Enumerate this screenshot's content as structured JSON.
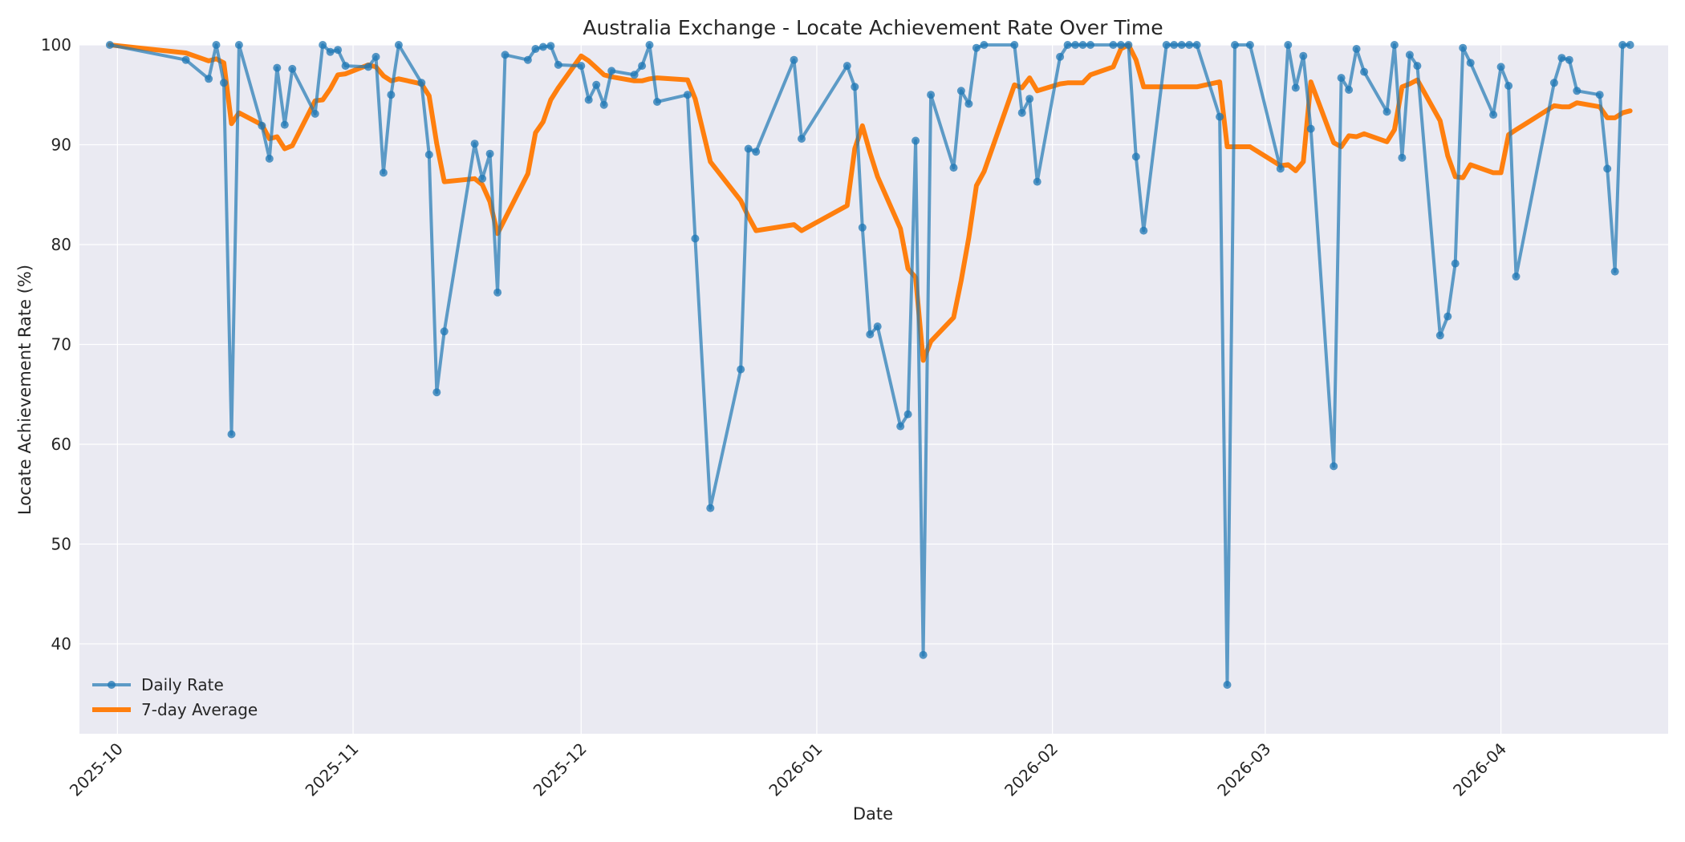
{
  "chart_data": {
    "type": "line",
    "title": "Australia Exchange - Locate Achievement Rate Over Time",
    "xlabel": "Date",
    "ylabel": "Locate Achievement Rate (%)",
    "xlim": [
      "2025-09-26",
      "2026-04-23"
    ],
    "ylim": [
      31,
      100
    ],
    "x_ticks": [
      "2025-10",
      "2025-11",
      "2025-12",
      "2026-01",
      "2026-02",
      "2026-03",
      "2026-04"
    ],
    "y_ticks": [
      40,
      50,
      60,
      70,
      80,
      90,
      100
    ],
    "grid": true,
    "legend": "bottom-left",
    "series": [
      {
        "name": "Daily Rate",
        "color": "#1f77b4",
        "marker": "circle",
        "points": [
          [
            "2025-09-30",
            100
          ],
          [
            "2025-10-10",
            98.5
          ],
          [
            "2025-10-13",
            96.6
          ],
          [
            "2025-10-14",
            100
          ],
          [
            "2025-10-15",
            96.2
          ],
          [
            "2025-10-16",
            61
          ],
          [
            "2025-10-17",
            100
          ],
          [
            "2025-10-20",
            91.9
          ],
          [
            "2025-10-21",
            88.6
          ],
          [
            "2025-10-22",
            97.7
          ],
          [
            "2025-10-23",
            92
          ],
          [
            "2025-10-24",
            97.6
          ],
          [
            "2025-10-27",
            93.1
          ],
          [
            "2025-10-28",
            100
          ],
          [
            "2025-10-29",
            99.3
          ],
          [
            "2025-10-30",
            99.5
          ],
          [
            "2025-10-31",
            97.9
          ],
          [
            "2025-11-03",
            97.8
          ],
          [
            "2025-11-04",
            98.8
          ],
          [
            "2025-11-05",
            87.2
          ],
          [
            "2025-11-06",
            95
          ],
          [
            "2025-11-07",
            100
          ],
          [
            "2025-11-10",
            96.2
          ],
          [
            "2025-11-11",
            89
          ],
          [
            "2025-11-12",
            65.2
          ],
          [
            "2025-11-13",
            71.3
          ],
          [
            "2025-11-17",
            90.1
          ],
          [
            "2025-11-18",
            86.6
          ],
          [
            "2025-11-19",
            89.1
          ],
          [
            "2025-11-20",
            75.2
          ],
          [
            "2025-11-21",
            99
          ],
          [
            "2025-11-24",
            98.5
          ],
          [
            "2025-11-25",
            99.6
          ],
          [
            "2025-11-26",
            99.8
          ],
          [
            "2025-11-27",
            99.9
          ],
          [
            "2025-11-28",
            98
          ],
          [
            "2025-12-01",
            97.9
          ],
          [
            "2025-12-02",
            94.5
          ],
          [
            "2025-12-03",
            96
          ],
          [
            "2025-12-04",
            94
          ],
          [
            "2025-12-05",
            97.4
          ],
          [
            "2025-12-08",
            97
          ],
          [
            "2025-12-09",
            97.9
          ],
          [
            "2025-12-10",
            100
          ],
          [
            "2025-12-11",
            94.3
          ],
          [
            "2025-12-15",
            95
          ],
          [
            "2025-12-16",
            80.6
          ],
          [
            "2025-12-18",
            53.6
          ],
          [
            "2025-12-22",
            67.5
          ],
          [
            "2025-12-23",
            89.6
          ],
          [
            "2025-12-24",
            89.3
          ],
          [
            "2025-12-29",
            98.5
          ],
          [
            "2025-12-30",
            90.6
          ],
          [
            "2026-01-05",
            97.9
          ],
          [
            "2026-01-06",
            95.8
          ],
          [
            "2026-01-07",
            81.7
          ],
          [
            "2026-01-08",
            71
          ],
          [
            "2026-01-09",
            71.8
          ],
          [
            "2026-01-12",
            61.8
          ],
          [
            "2026-01-13",
            63
          ],
          [
            "2026-01-14",
            90.4
          ],
          [
            "2026-01-15",
            38.9
          ],
          [
            "2026-01-16",
            95
          ],
          [
            "2026-01-19",
            87.7
          ],
          [
            "2026-01-20",
            95.4
          ],
          [
            "2026-01-21",
            94.1
          ],
          [
            "2026-01-22",
            99.7
          ],
          [
            "2026-01-23",
            100
          ],
          [
            "2026-01-27",
            100
          ],
          [
            "2026-01-28",
            93.2
          ],
          [
            "2026-01-29",
            94.6
          ],
          [
            "2026-01-30",
            86.3
          ],
          [
            "2026-02-02",
            98.8
          ],
          [
            "2026-02-03",
            100
          ],
          [
            "2026-02-04",
            100
          ],
          [
            "2026-02-05",
            100
          ],
          [
            "2026-02-06",
            100
          ],
          [
            "2026-02-09",
            100
          ],
          [
            "2026-02-10",
            100
          ],
          [
            "2026-02-11",
            100
          ],
          [
            "2026-02-12",
            88.8
          ],
          [
            "2026-02-13",
            81.4
          ],
          [
            "2026-02-16",
            100
          ],
          [
            "2026-02-17",
            100
          ],
          [
            "2026-02-18",
            100
          ],
          [
            "2026-02-19",
            100
          ],
          [
            "2026-02-20",
            100
          ],
          [
            "2026-02-23",
            92.8
          ],
          [
            "2026-02-24",
            35.9
          ],
          [
            "2026-02-25",
            100
          ],
          [
            "2026-02-27",
            100
          ],
          [
            "2026-03-03",
            87.6
          ],
          [
            "2026-03-04",
            100
          ],
          [
            "2026-03-05",
            95.7
          ],
          [
            "2026-03-06",
            98.9
          ],
          [
            "2026-03-07",
            91.6
          ],
          [
            "2026-03-10",
            57.8
          ],
          [
            "2026-03-11",
            96.7
          ],
          [
            "2026-03-12",
            95.5
          ],
          [
            "2026-03-13",
            99.6
          ],
          [
            "2026-03-14",
            97.3
          ],
          [
            "2026-03-17",
            93.3
          ],
          [
            "2026-03-18",
            100
          ],
          [
            "2026-03-19",
            88.7
          ],
          [
            "2026-03-20",
            99
          ],
          [
            "2026-03-21",
            97.9
          ],
          [
            "2026-03-24",
            70.9
          ],
          [
            "2026-03-25",
            72.8
          ],
          [
            "2026-03-26",
            78.1
          ],
          [
            "2026-03-27",
            99.7
          ],
          [
            "2026-03-28",
            98.2
          ],
          [
            "2026-03-31",
            93
          ],
          [
            "2026-04-01",
            97.8
          ],
          [
            "2026-04-02",
            95.9
          ],
          [
            "2026-04-03",
            76.8
          ],
          [
            "2026-04-08",
            96.2
          ],
          [
            "2026-04-09",
            98.7
          ],
          [
            "2026-04-10",
            98.5
          ],
          [
            "2026-04-11",
            95.4
          ],
          [
            "2026-04-14",
            95
          ],
          [
            "2026-04-15",
            87.6
          ],
          [
            "2026-04-16",
            77.3
          ],
          [
            "2026-04-17",
            100
          ],
          [
            "2026-04-18",
            100
          ]
        ]
      },
      {
        "name": "7-day Average",
        "color": "#ff7f0e",
        "points": [
          [
            "2025-09-30",
            100
          ],
          [
            "2025-10-10",
            99.2
          ],
          [
            "2025-10-13",
            98.4
          ],
          [
            "2025-10-14",
            98.6
          ],
          [
            "2025-10-15",
            98.2
          ],
          [
            "2025-10-16",
            92.1
          ],
          [
            "2025-10-17",
            93.2
          ],
          [
            "2025-10-20",
            92
          ],
          [
            "2025-10-21",
            90.6
          ],
          [
            "2025-10-22",
            90.8
          ],
          [
            "2025-10-23",
            89.6
          ],
          [
            "2025-10-24",
            89.9
          ],
          [
            "2025-10-27",
            94.4
          ],
          [
            "2025-10-28",
            94.5
          ],
          [
            "2025-10-29",
            95.6
          ],
          [
            "2025-10-30",
            97
          ],
          [
            "2025-10-31",
            97.1
          ],
          [
            "2025-11-03",
            98
          ],
          [
            "2025-11-04",
            97.8
          ],
          [
            "2025-11-05",
            96.9
          ],
          [
            "2025-11-06",
            96.4
          ],
          [
            "2025-11-07",
            96.6
          ],
          [
            "2025-11-10",
            96.1
          ],
          [
            "2025-11-11",
            94.9
          ],
          [
            "2025-11-12",
            90.1
          ],
          [
            "2025-11-13",
            86.3
          ],
          [
            "2025-11-17",
            86.6
          ],
          [
            "2025-11-18",
            86
          ],
          [
            "2025-11-19",
            84.3
          ],
          [
            "2025-11-20",
            81.1
          ],
          [
            "2025-11-21",
            82.6
          ],
          [
            "2025-11-24",
            87.1
          ],
          [
            "2025-11-25",
            91.2
          ],
          [
            "2025-11-26",
            92.3
          ],
          [
            "2025-11-27",
            94.5
          ],
          [
            "2025-11-28",
            95.7
          ],
          [
            "2025-12-01",
            98.9
          ],
          [
            "2025-12-02",
            98.4
          ],
          [
            "2025-12-03",
            97.7
          ],
          [
            "2025-12-04",
            97
          ],
          [
            "2025-12-05",
            96.8
          ],
          [
            "2025-12-08",
            96.4
          ],
          [
            "2025-12-09",
            96.4
          ],
          [
            "2025-12-10",
            96.6
          ],
          [
            "2025-12-11",
            96.7
          ],
          [
            "2025-12-15",
            96.5
          ],
          [
            "2025-12-16",
            94.6
          ],
          [
            "2025-12-18",
            88.3
          ],
          [
            "2025-12-22",
            84.4
          ],
          [
            "2025-12-23",
            82.8
          ],
          [
            "2025-12-24",
            81.4
          ],
          [
            "2025-12-29",
            82
          ],
          [
            "2025-12-30",
            81.4
          ],
          [
            "2026-01-05",
            83.9
          ],
          [
            "2026-01-06",
            89.6
          ],
          [
            "2026-01-07",
            91.9
          ],
          [
            "2026-01-08",
            89.2
          ],
          [
            "2026-01-09",
            86.8
          ],
          [
            "2026-01-12",
            81.6
          ],
          [
            "2026-01-13",
            77.6
          ],
          [
            "2026-01-14",
            76.7
          ],
          [
            "2026-01-15",
            68.4
          ],
          [
            "2026-01-16",
            70.3
          ],
          [
            "2026-01-19",
            72.7
          ],
          [
            "2026-01-20",
            76.4
          ],
          [
            "2026-01-21",
            80.7
          ],
          [
            "2026-01-22",
            85.9
          ],
          [
            "2026-01-23",
            87.3
          ],
          [
            "2026-01-27",
            96
          ],
          [
            "2026-01-28",
            95.7
          ],
          [
            "2026-01-29",
            96.7
          ],
          [
            "2026-01-30",
            95.4
          ],
          [
            "2026-02-02",
            96.1
          ],
          [
            "2026-02-03",
            96.2
          ],
          [
            "2026-02-04",
            96.2
          ],
          [
            "2026-02-05",
            96.2
          ],
          [
            "2026-02-06",
            97
          ],
          [
            "2026-02-09",
            97.8
          ],
          [
            "2026-02-10",
            99.6
          ],
          [
            "2026-02-11",
            100
          ],
          [
            "2026-02-12",
            98.5
          ],
          [
            "2026-02-13",
            95.8
          ],
          [
            "2026-02-16",
            95.8
          ],
          [
            "2026-02-17",
            95.8
          ],
          [
            "2026-02-18",
            95.8
          ],
          [
            "2026-02-19",
            95.8
          ],
          [
            "2026-02-20",
            95.8
          ],
          [
            "2026-02-23",
            96.3
          ],
          [
            "2026-02-24",
            89.8
          ],
          [
            "2026-02-25",
            89.8
          ],
          [
            "2026-02-27",
            89.8
          ],
          [
            "2026-03-03",
            87.9
          ],
          [
            "2026-03-04",
            88
          ],
          [
            "2026-03-05",
            87.4
          ],
          [
            "2026-03-06",
            88.3
          ],
          [
            "2026-03-07",
            96.3
          ],
          [
            "2026-03-10",
            90.2
          ],
          [
            "2026-03-11",
            89.8
          ],
          [
            "2026-03-12",
            90.9
          ],
          [
            "2026-03-13",
            90.8
          ],
          [
            "2026-03-14",
            91.1
          ],
          [
            "2026-03-17",
            90.3
          ],
          [
            "2026-03-18",
            91.5
          ],
          [
            "2026-03-19",
            95.8
          ],
          [
            "2026-03-20",
            96.1
          ],
          [
            "2026-03-21",
            96.5
          ],
          [
            "2026-03-24",
            92.4
          ],
          [
            "2026-03-25",
            88.9
          ],
          [
            "2026-03-26",
            86.8
          ],
          [
            "2026-03-27",
            86.7
          ],
          [
            "2026-03-28",
            88
          ],
          [
            "2026-03-31",
            87.2
          ],
          [
            "2026-04-01",
            87.2
          ],
          [
            "2026-04-02",
            91
          ],
          [
            "2026-04-03",
            91.5
          ],
          [
            "2026-04-08",
            93.9
          ],
          [
            "2026-04-09",
            93.8
          ],
          [
            "2026-04-10",
            93.8
          ],
          [
            "2026-04-11",
            94.2
          ],
          [
            "2026-04-14",
            93.8
          ],
          [
            "2026-04-15",
            92.7
          ],
          [
            "2026-04-16",
            92.7
          ],
          [
            "2026-04-17",
            93.2
          ],
          [
            "2026-04-18",
            93.4
          ]
        ]
      }
    ],
    "colors": {
      "background": "#eaeaf2",
      "grid": "#ffffff",
      "text": "#262626"
    }
  }
}
